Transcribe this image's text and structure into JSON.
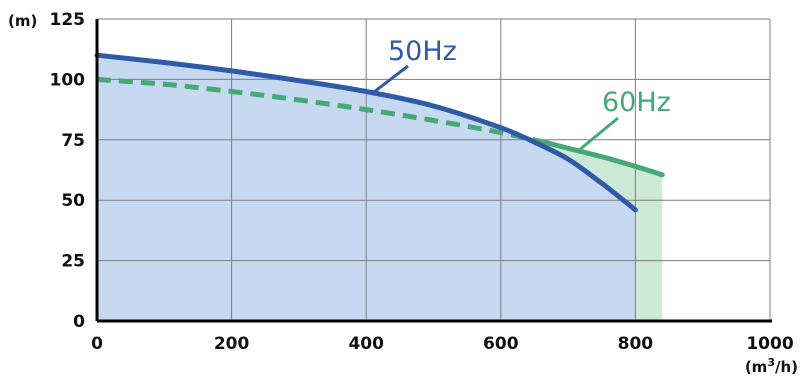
{
  "chart_data": {
    "type": "line",
    "title": "",
    "xlabel": "",
    "ylabel": "",
    "x_unit": "(m3/h)",
    "y_unit": "(m)",
    "xlim": [
      0,
      1000
    ],
    "ylim": [
      0,
      125
    ],
    "x_ticks": [
      "0",
      "200",
      "400",
      "600",
      "800",
      "1000"
    ],
    "y_ticks": [
      "0",
      "25",
      "50",
      "75",
      "100",
      "125"
    ],
    "grid": true,
    "series": [
      {
        "name": "50Hz",
        "color": "#2e5aa8",
        "fill": "#c7d9f0",
        "style": "solid",
        "x": [
          0,
          100,
          200,
          300,
          400,
          500,
          600,
          650,
          700,
          750,
          800
        ],
        "y": [
          110,
          107,
          103.5,
          99.5,
          95,
          89,
          80,
          74,
          67,
          57,
          46
        ]
      },
      {
        "name": "60Hz",
        "color": "#47a877",
        "fill": "#cce8d6",
        "style": "dashed-then-solid",
        "dash_until_x": 665,
        "x": [
          0,
          100,
          200,
          300,
          400,
          500,
          600,
          665,
          700,
          750,
          800,
          840
        ],
        "y": [
          100,
          98,
          95,
          91.5,
          87.5,
          83,
          78,
          74,
          71.5,
          68,
          64,
          60.5
        ]
      }
    ]
  }
}
